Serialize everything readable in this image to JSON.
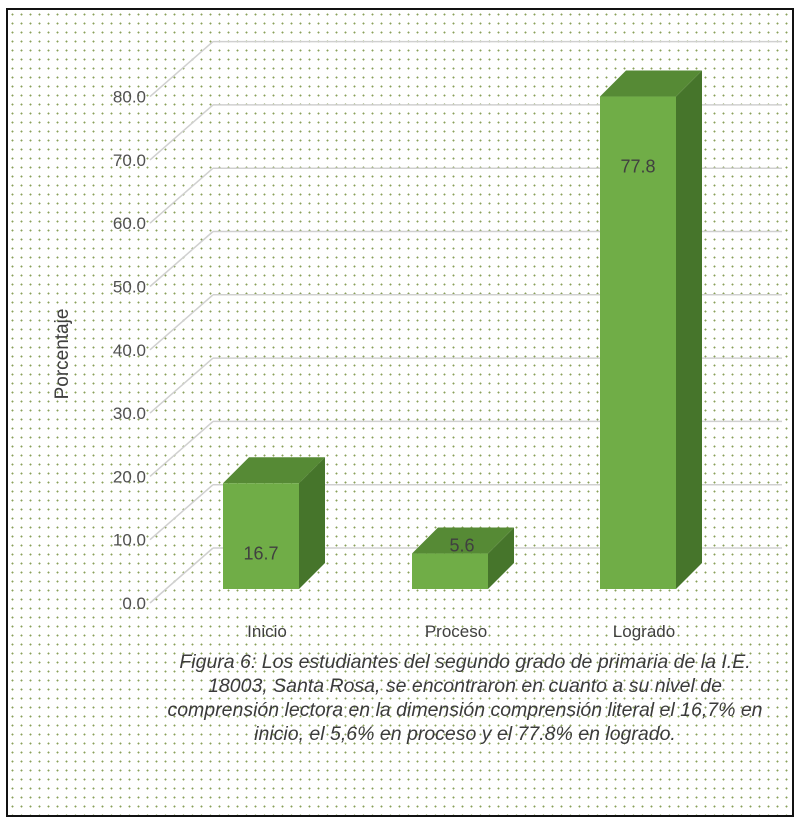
{
  "chart_data": {
    "type": "bar",
    "categories": [
      "Inicio",
      "Proceso",
      "Logrado"
    ],
    "values": [
      16.7,
      5.6,
      77.8
    ],
    "data_labels": [
      "16.7",
      "5.6",
      "77.8"
    ],
    "title": "",
    "xlabel": "",
    "ylabel": "Porcentaje",
    "ylim": [
      0,
      80
    ],
    "yticks": [
      "0.0",
      "10.0",
      "20.0",
      "30.0",
      "40.0",
      "50.0",
      "60.0",
      "70.0",
      "80.0"
    ],
    "grid": true,
    "style": "3d-column",
    "colors": {
      "bar_front": "#70ad47",
      "bar_top": "#568a35",
      "bar_side": "#46752b"
    }
  },
  "caption": "Figura 6: Los estudiantes del segundo grado de primaria de la I.E. 18003, Santa Rosa, se encontraron en cuanto a su nivel de comprensión lectora en la dimensión comprensión literal el 16,7% en inicio, el 5,6% en proceso y el 77.8% en logrado."
}
